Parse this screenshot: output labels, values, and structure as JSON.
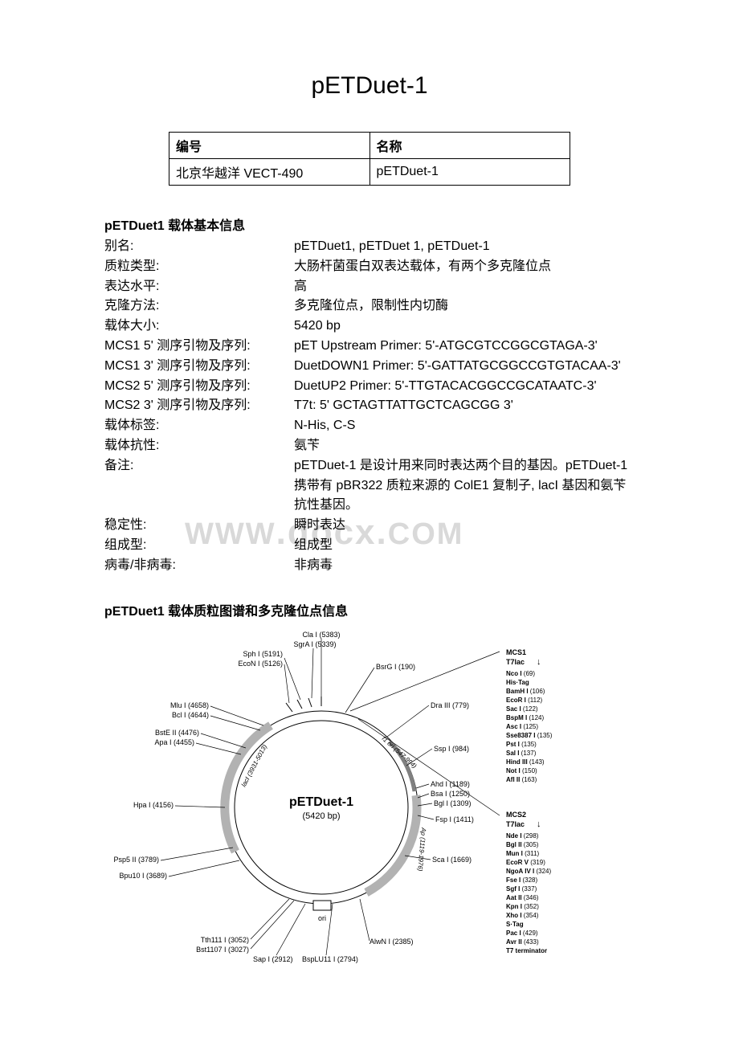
{
  "title": "pETDuet-1",
  "info_table": {
    "h1": "编号",
    "h2": "名称",
    "c1": "北京华越洋 VECT-490",
    "c2": "pETDuet-1"
  },
  "basic_header": "pETDuet1 载体基本信息",
  "basic": [
    {
      "label": "别名:",
      "value": "pETDuet1, pETDuet 1, pETDuet-1"
    },
    {
      "label": "质粒类型:",
      "value": "大肠杆菌蛋白双表达载体，有两个多克隆位点"
    },
    {
      "label": "表达水平:",
      "value": "高"
    },
    {
      "label": "克隆方法:",
      "value": "多克隆位点，限制性内切酶"
    },
    {
      "label": "载体大小:",
      "value": "5420 bp"
    },
    {
      "label": "MCS1 5'  测序引物及序列:",
      "value": "pET Upstream Primer: 5'-ATGCGTCCGGCGTAGA-3'"
    },
    {
      "label": "MCS1 3'  测序引物及序列:",
      "value": "DuetDOWN1 Primer: 5'-GATTATGCGGCCGTGTACAA-3'"
    },
    {
      "label": "MCS2 5'  测序引物及序列:",
      "value": "DuetUP2 Primer: 5'-TTGTACACGGCCGCATAATC-3'"
    },
    {
      "label": "MCS2 3'  测序引物及序列:",
      "value": "T7t: 5' GCTAGTTATTGCTCAGCGG 3'"
    },
    {
      "label": "载体标签:",
      "value": "N-His, C-S"
    },
    {
      "label": "载体抗性:",
      "value": "氨苄"
    },
    {
      "label": "备注:",
      "value": "pETDuet-1 是设计用来同时表达两个目的基因。pETDuet-1 携带有 pBR322 质粒来源的 ColE1 复制子, lacI 基因和氨苄抗性基因。"
    },
    {
      "label": "稳定性:",
      "value": "瞬时表达"
    },
    {
      "label": "组成型:",
      "value": "组成型"
    },
    {
      "label": "病毒/非病毒:",
      "value": "非病毒"
    }
  ],
  "watermark": "WWW.docx.COM",
  "map_header": "pETDuet1 载体质粒图谱和多克隆位点信息",
  "plasmid": {
    "name": "pETDuet-1",
    "size": "(5420 bp)",
    "colors": {
      "ring": "#000000",
      "fill": "#ffffff",
      "arc_ap": "#b2b2b2",
      "arc_lacI": "#b2b2b2",
      "arc_ori": "#808080",
      "text": "#000000"
    },
    "left_labels": [
      "Mlu I (4658)",
      "Bcl I (4644)",
      "BstE II (4476)",
      "Apa I (4455)",
      "Hpa I (4156)",
      "Psp5 II (3789)",
      "Bpu10 I (3689)"
    ],
    "bottom_labels": [
      "Tth111 I (3052)",
      "Bst1107 I (3027)",
      "Sap I (2912)",
      "BspLU11 I (2794)",
      "AlwN I (2385)",
      "ori"
    ],
    "right_labels": [
      "BsrG I (190)",
      "Dra III (779)",
      "Ssp I (984)",
      "Ahd I (1189)",
      "Bsa I (1250)",
      "Bgl I (1309)",
      "Fsp I (1411)",
      "Sca I (1669)"
    ],
    "top_labels": [
      "Cla I (5383)",
      "SgrA I (5339)",
      "Sph I (5191)",
      "EcoN I (5126)"
    ],
    "inner_labels": [
      "lacI (3931-5013)",
      "f1 ori (547-994)",
      "Ap (1119-1976)"
    ],
    "mcs1": {
      "header": "MCS1",
      "sub": "T7lac",
      "items": [
        "Nco I (69)",
        "His·Tag",
        "BamH I (106)",
        "EcoR I (112)",
        "Sac I (122)",
        "BspM I (124)",
        "Asc I (125)",
        "Sse8387 I (135)",
        "Pst I (135)",
        "Sal I (137)",
        "Hind III (143)",
        "Not I (150)",
        "Afl II (163)"
      ]
    },
    "mcs2": {
      "header": "MCS2",
      "sub": "T7lac",
      "items": [
        "Nde I (298)",
        "Bgl II (305)",
        "Mun I (311)",
        "EcoR V (319)",
        "NgoA IV I (324)",
        "Fse I (328)",
        "Sgf I (337)",
        "Aat II (346)",
        "Kpn I (352)",
        "Xho I (354)",
        "S·Tag",
        "Pac I (429)",
        "Avr II (433)",
        "T7 terminator"
      ]
    }
  }
}
